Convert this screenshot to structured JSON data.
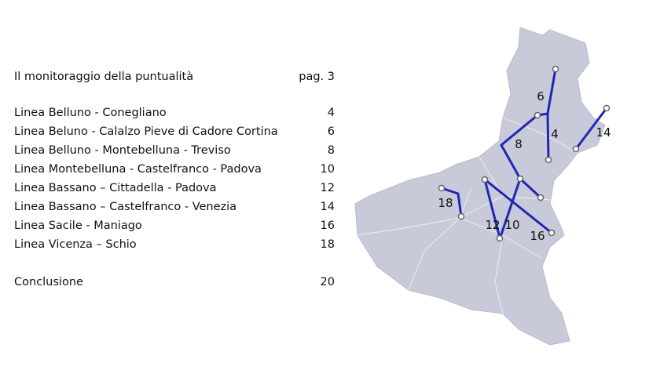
{
  "intro": {
    "title": "Il monitoraggio della puntualità",
    "page": "pag. 3"
  },
  "toc": [
    {
      "title": "Linea Belluno - Conegliano",
      "page": 4
    },
    {
      "title": "Linea Beluno - Calalzo Pieve di Cadore Cortina",
      "page": 6
    },
    {
      "title": "Linea Belluno - Montebelluna - Treviso",
      "page": 8
    },
    {
      "title": "Linea Montebelluna - Castelfranco - Padova",
      "page": 10
    },
    {
      "title": "Linea Bassano – Cittadella - Padova",
      "page": 12
    },
    {
      "title": "Linea Bassano – Castelfranco - Venezia",
      "page": 14
    },
    {
      "title": "Linea Sacile - Maniago",
      "page": 16
    },
    {
      "title": "Linea Vicenza – Schio",
      "page": 18
    }
  ],
  "conclusion": {
    "title": "Conclusione",
    "page": 20
  },
  "map": {
    "labels": [
      6,
      4,
      8,
      14,
      18,
      12,
      10,
      16
    ]
  }
}
